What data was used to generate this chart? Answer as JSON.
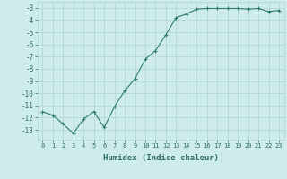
{
  "x": [
    0,
    1,
    2,
    3,
    4,
    5,
    6,
    7,
    8,
    9,
    10,
    11,
    12,
    13,
    14,
    15,
    16,
    17,
    18,
    19,
    20,
    21,
    22,
    23
  ],
  "y": [
    -11.5,
    -11.8,
    -12.5,
    -13.3,
    -12.1,
    -11.5,
    -12.8,
    -11.1,
    -9.8,
    -8.8,
    -7.2,
    -6.5,
    -5.2,
    -3.8,
    -3.5,
    -3.1,
    -3.05,
    -3.05,
    -3.05,
    -3.05,
    -3.1,
    -3.05,
    -3.3,
    -3.2
  ],
  "xlabel": "Humidex (Indice chaleur)",
  "line_color": "#2e7d6e",
  "marker": "+",
  "marker_size": 3.5,
  "marker_lw": 0.8,
  "line_width": 0.8,
  "bg_color": "#ceecea",
  "grid_color": "#b0d4d0",
  "label_color": "#2e6b60",
  "xlim": [
    -0.5,
    23.5
  ],
  "ylim": [
    -13.8,
    -2.5
  ],
  "yticks": [
    -3,
    -4,
    -5,
    -6,
    -7,
    -8,
    -9,
    -10,
    -11,
    -12,
    -13
  ],
  "xticks": [
    0,
    1,
    2,
    3,
    4,
    5,
    6,
    7,
    8,
    9,
    10,
    11,
    12,
    13,
    14,
    15,
    16,
    17,
    18,
    19,
    20,
    21,
    22,
    23
  ],
  "xlabel_fontsize": 6.5,
  "xtick_fontsize": 5.0,
  "ytick_fontsize": 5.5
}
